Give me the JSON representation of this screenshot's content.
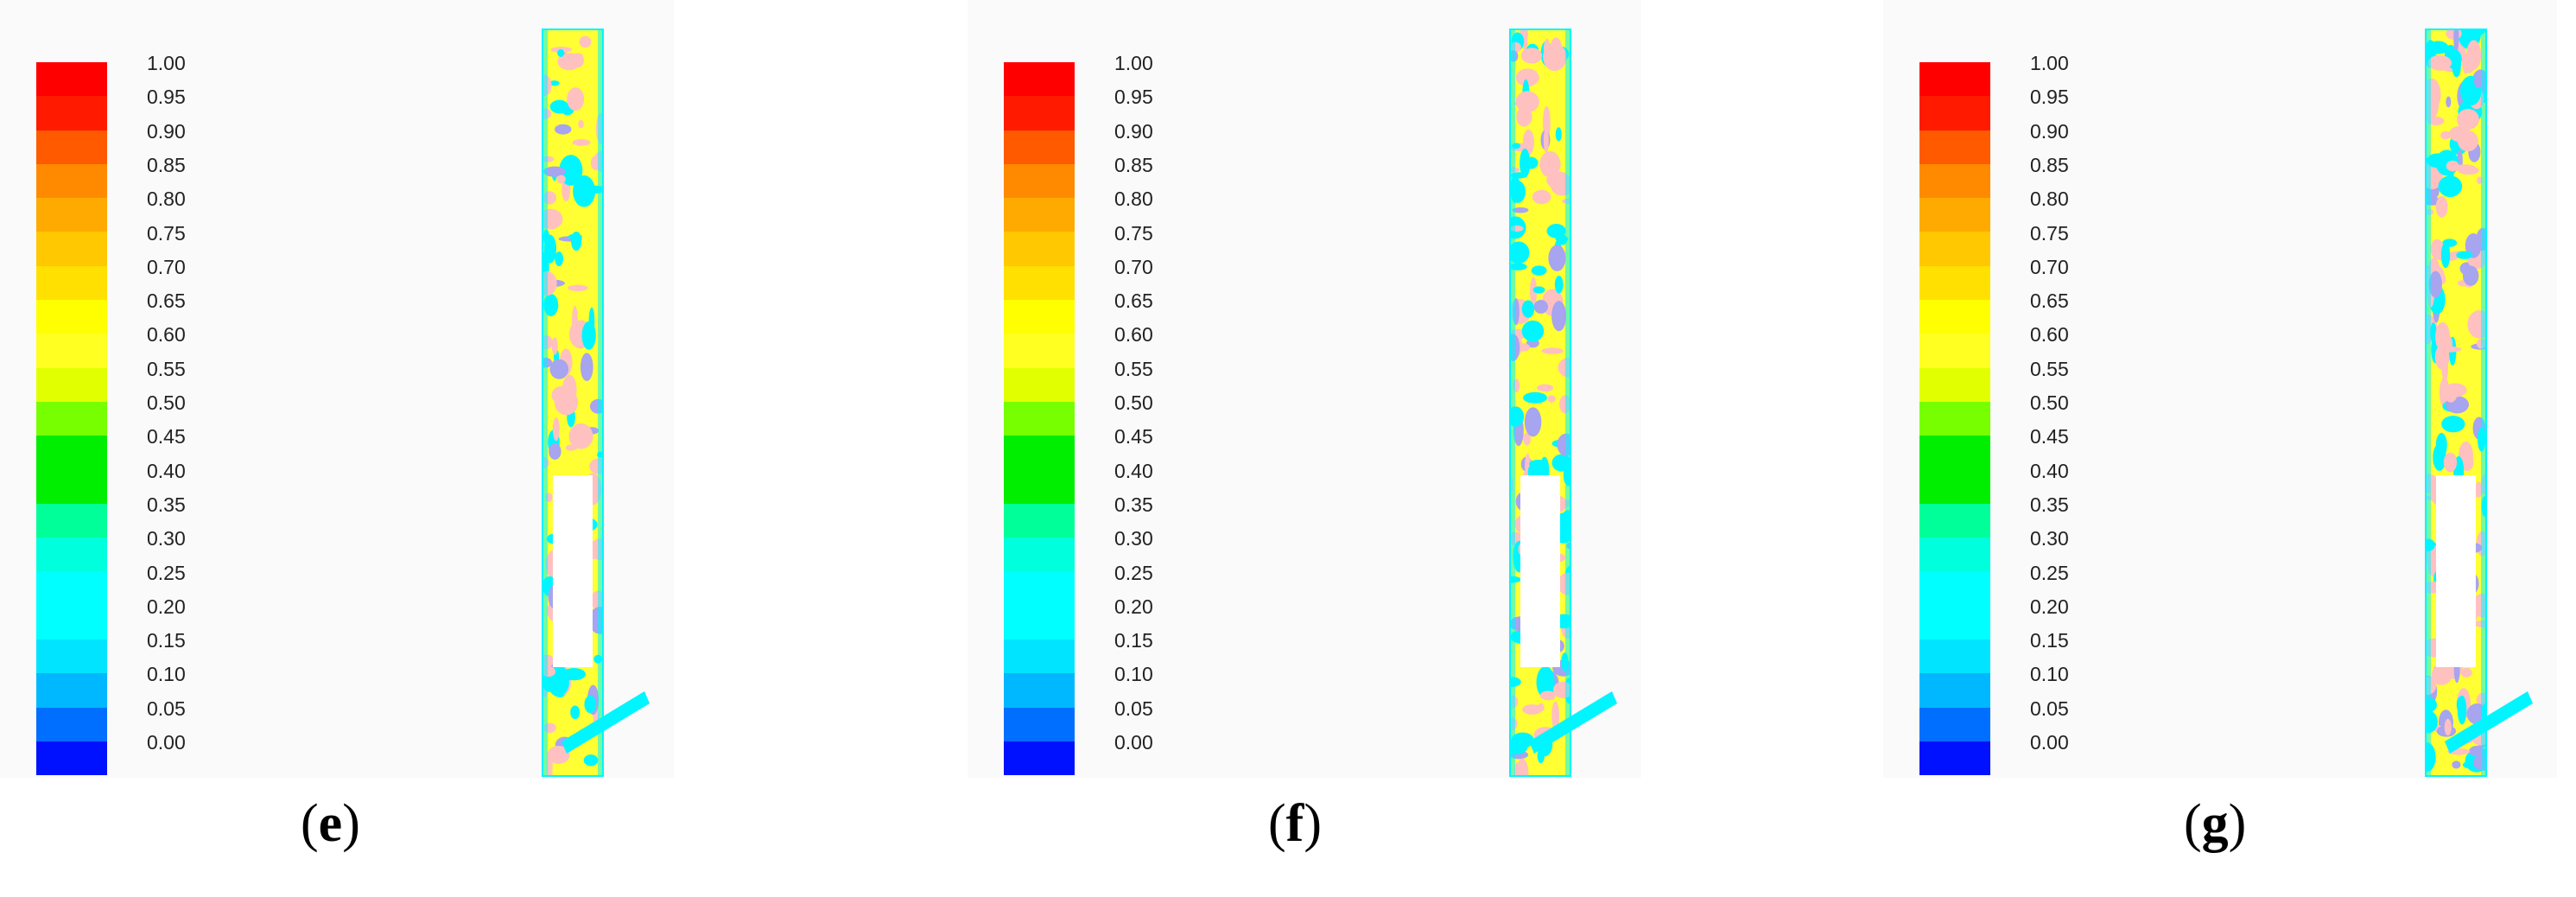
{
  "colorbar": {
    "tick_labels": [
      "1.00",
      "0.95",
      "0.90",
      "0.85",
      "0.80",
      "0.75",
      "0.70",
      "0.65",
      "0.60",
      "0.55",
      "0.50",
      "0.45",
      "0.40",
      "0.35",
      "0.30",
      "0.25",
      "0.20",
      "0.15",
      "0.10",
      "0.05",
      "0.00"
    ],
    "colors": [
      "#ff0000",
      "#ff1a00",
      "#ff5a00",
      "#ff8a00",
      "#ffaa00",
      "#ffc800",
      "#ffe000",
      "#ffff00",
      "#ffff22",
      "#e2ff00",
      "#77ff00",
      "#00ee00",
      "#00ee00",
      "#00ff99",
      "#00ffdd",
      "#00ffff",
      "#00ffff",
      "#00e4ff",
      "#00b8ff",
      "#006fff",
      "#0011ff"
    ]
  },
  "panels": [
    {
      "label": "e"
    },
    {
      "label": "f"
    },
    {
      "label": "g"
    }
  ],
  "contour_colors": {
    "background": "#ffff33",
    "cyan": "#00f5ff",
    "pink": "#ffc0c0",
    "lavender": "#a7a4f0"
  }
}
